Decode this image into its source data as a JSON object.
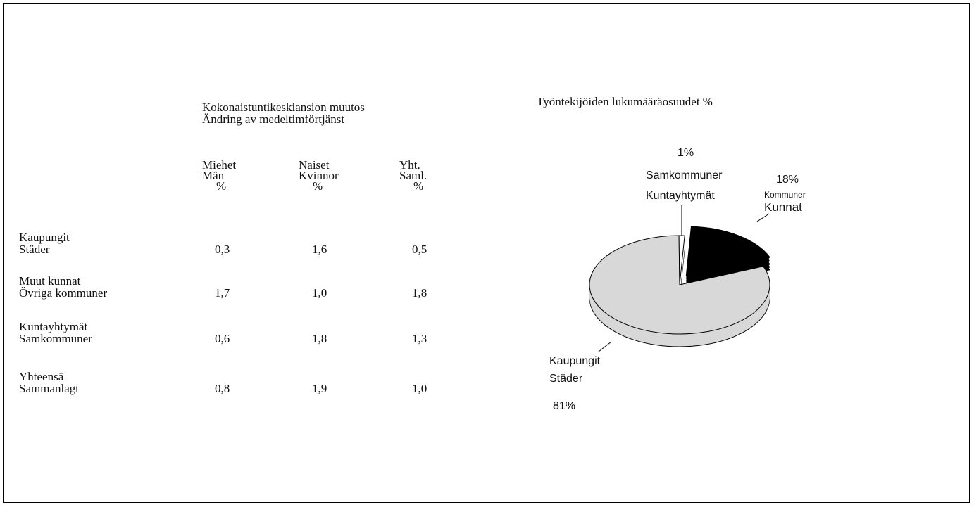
{
  "table": {
    "title": [
      "Kokonaistuntikeskiansion muutos",
      "Ändring av medeltimförtjänst"
    ],
    "columns": [
      [
        "Miehet",
        "Män",
        "%"
      ],
      [
        "Naiset",
        "Kvinnor",
        "%"
      ],
      [
        "Yht.",
        "Saml.",
        "%"
      ]
    ],
    "rows": [
      {
        "label": [
          "Kaupungit",
          "Städer"
        ],
        "values": [
          "0,3",
          "1,6",
          "0,5"
        ]
      },
      {
        "label": [
          "Muut kunnat",
          "Övriga kommuner"
        ],
        "values": [
          "1,7",
          "1,0",
          "1,8"
        ]
      },
      {
        "label": [
          "Kuntayhtymät",
          "Samkommuner"
        ],
        "values": [
          "0,6",
          "1,8",
          "1,3"
        ]
      },
      {
        "label": [
          "Yhteensä",
          "Sammanlagt"
        ],
        "values": [
          "0,8",
          "1,9",
          "1,0"
        ]
      }
    ]
  },
  "chart_data": {
    "type": "pie",
    "title": "Työntekijöiden lukumääräosuudet  %",
    "categories": [
      [
        "Kaupungit",
        "Städer"
      ],
      [
        "Samkommuner",
        "Kuntayhtymät"
      ],
      [
        "Kommuner",
        "Kunnat"
      ]
    ],
    "values": [
      81,
      1,
      18
    ],
    "value_labels": [
      "81%",
      "1%",
      "18%"
    ],
    "colors": [
      "#d8d8d8",
      "#ffffff",
      "#000000"
    ]
  }
}
